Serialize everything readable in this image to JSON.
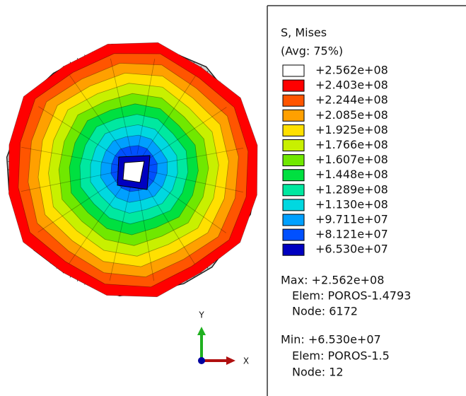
{
  "legend": {
    "title": "S, Mises",
    "subtitle": "(Avg: 75%)",
    "levels": [
      {
        "label": "+2.562e+08",
        "color": "#ffffff"
      },
      {
        "label": "+2.403e+08",
        "color": "#ff0000"
      },
      {
        "label": "+2.244e+08",
        "color": "#ff5500"
      },
      {
        "label": "+2.085e+08",
        "color": "#ffa000"
      },
      {
        "label": "+1.925e+08",
        "color": "#ffe000"
      },
      {
        "label": "+1.766e+08",
        "color": "#c8f000"
      },
      {
        "label": "+1.607e+08",
        "color": "#70e800"
      },
      {
        "label": "+1.448e+08",
        "color": "#00e040"
      },
      {
        "label": "+1.289e+08",
        "color": "#00e8a0"
      },
      {
        "label": "+1.130e+08",
        "color": "#00d8e0"
      },
      {
        "label": "+9.711e+07",
        "color": "#00a0ff"
      },
      {
        "label": "+8.121e+07",
        "color": "#0050ff"
      },
      {
        "label": "+6.530e+07",
        "color": "#0000c0"
      }
    ]
  },
  "max": {
    "value": "Max: +2.562e+08",
    "elem": "Elem: POROS-1.4793",
    "node": "Node: 6172"
  },
  "min": {
    "value": "Min: +6.530e+07",
    "elem": "Elem: POROS-1.5",
    "node": "Node: 12"
  },
  "triad": {
    "y": "Y",
    "x": "X"
  }
}
